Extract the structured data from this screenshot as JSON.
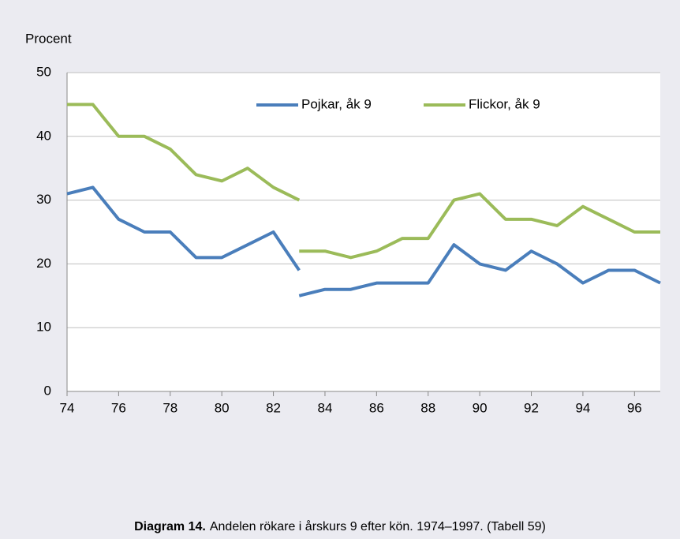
{
  "chart_data": {
    "type": "line",
    "y_label": "Procent",
    "caption_bold": "Diagram 14.",
    "caption": "Andelen rökare i årskurs 9 efter kön. 1974–1997. (Tabell 59)",
    "x": [
      74,
      75,
      76,
      77,
      78,
      79,
      80,
      81,
      82,
      83,
      null,
      83,
      84,
      85,
      86,
      87,
      88,
      89,
      90,
      91,
      92,
      93,
      94,
      95,
      96,
      97
    ],
    "series": [
      {
        "name": "Pojkar, åk 9",
        "color": "#4a7ebb",
        "values": [
          31,
          32,
          27,
          25,
          25,
          21,
          21,
          23,
          25,
          19,
          null,
          15,
          16,
          16,
          17,
          17,
          17,
          23,
          20,
          19,
          22,
          20,
          17,
          19,
          19,
          17
        ]
      },
      {
        "name": "Flickor, åk 9",
        "color": "#9bbb59",
        "values": [
          45,
          45,
          40,
          40,
          38,
          34,
          33,
          35,
          32,
          30,
          null,
          22,
          22,
          21,
          22,
          24,
          24,
          30,
          31,
          27,
          27,
          26,
          29,
          27,
          25,
          25
        ]
      }
    ],
    "xlim": [
      74,
      97
    ],
    "xticks": [
      74,
      76,
      78,
      80,
      82,
      84,
      86,
      88,
      90,
      92,
      94,
      96
    ],
    "ylim": [
      0,
      50
    ],
    "yticks": [
      0,
      10,
      20,
      30,
      40,
      50
    ],
    "grid": true,
    "legend": "top"
  }
}
